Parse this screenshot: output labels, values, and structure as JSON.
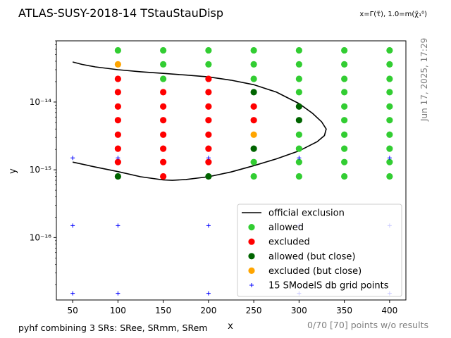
{
  "chart_data": {
    "type": "scatter",
    "title": "ATLAS-SUSY-2018-14 TStauStauDisp",
    "subtitle": "x=Γ(τ̃), 1.0=m(χ̃₁⁰)",
    "xlabel": "x",
    "ylabel": "y",
    "xlim": [
      32,
      418
    ],
    "ylim": [
      1.2e-17,
      8e-14
    ],
    "yscale": "log",
    "grid": false,
    "legend_position": "bottom-right",
    "x_ticks": [
      50,
      100,
      150,
      200,
      250,
      300,
      350,
      400
    ],
    "x_tick_labels": [
      "50",
      "100",
      "150",
      "200",
      "250",
      "300",
      "350",
      "400"
    ],
    "y_ticks": [
      1e-16,
      1e-15,
      1e-14
    ],
    "y_tick_labels": [
      "10⁻¹⁶",
      "10⁻¹⁵",
      "10⁻¹⁴"
    ],
    "colors": {
      "allowed": "#32cd32",
      "excluded": "#ff0000",
      "allowed_close": "#006400",
      "excluded_close": "#ffa500",
      "grid_points": "#0000ff",
      "official_exclusion": "#000000"
    },
    "series": [
      {
        "name": "official exclusion",
        "style": "line",
        "color": "#000000",
        "points": [
          [
            50,
            3.9e-14
          ],
          [
            60,
            3.6e-14
          ],
          [
            75,
            3.3e-14
          ],
          [
            100,
            3e-14
          ],
          [
            125,
            2.8e-14
          ],
          [
            150,
            2.65e-14
          ],
          [
            175,
            2.5e-14
          ],
          [
            200,
            2.35e-14
          ],
          [
            225,
            2.1e-14
          ],
          [
            250,
            1.8e-14
          ],
          [
            275,
            1.4e-14
          ],
          [
            300,
            9.5e-15
          ],
          [
            315,
            6.8e-15
          ],
          [
            325,
            5.1e-15
          ],
          [
            330,
            4e-15
          ],
          [
            328,
            3.2e-15
          ],
          [
            320,
            2.6e-15
          ],
          [
            300,
            1.9e-15
          ],
          [
            275,
            1.45e-15
          ],
          [
            250,
            1.15e-15
          ],
          [
            225,
            9.3e-16
          ],
          [
            200,
            7.9e-16
          ],
          [
            175,
            7.2e-16
          ],
          [
            160,
            7e-16
          ],
          [
            150,
            7.1e-16
          ],
          [
            125,
            7.9e-16
          ],
          [
            100,
            9.4e-16
          ],
          [
            75,
            1.1e-15
          ],
          [
            50,
            1.3e-15
          ]
        ]
      },
      {
        "name": "allowed",
        "style": "marker",
        "color": "#32cd32",
        "points": [
          [
            100,
            5.8e-14
          ],
          [
            150,
            5.8e-14
          ],
          [
            150,
            3.6e-14
          ],
          [
            150,
            2.2e-14
          ],
          [
            200,
            5.8e-14
          ],
          [
            200,
            3.6e-14
          ],
          [
            250,
            5.8e-14
          ],
          [
            250,
            3.6e-14
          ],
          [
            250,
            2.2e-14
          ],
          [
            250,
            1.3e-15
          ],
          [
            250,
            8e-16
          ],
          [
            300,
            5.8e-14
          ],
          [
            300,
            3.6e-14
          ],
          [
            300,
            2.2e-14
          ],
          [
            300,
            1.4e-14
          ],
          [
            300,
            3.3e-15
          ],
          [
            300,
            2.05e-15
          ],
          [
            300,
            1.3e-15
          ],
          [
            300,
            8e-16
          ],
          [
            350,
            5.8e-14
          ],
          [
            350,
            3.6e-14
          ],
          [
            350,
            2.2e-14
          ],
          [
            350,
            1.4e-14
          ],
          [
            350,
            8.6e-15
          ],
          [
            350,
            5.4e-15
          ],
          [
            350,
            3.3e-15
          ],
          [
            350,
            2.05e-15
          ],
          [
            350,
            1.3e-15
          ],
          [
            350,
            8e-16
          ],
          [
            400,
            5.8e-14
          ],
          [
            400,
            3.6e-14
          ],
          [
            400,
            2.2e-14
          ],
          [
            400,
            1.4e-14
          ],
          [
            400,
            8.6e-15
          ],
          [
            400,
            5.4e-15
          ],
          [
            400,
            3.3e-15
          ],
          [
            400,
            2.05e-15
          ],
          [
            400,
            1.3e-15
          ],
          [
            400,
            8e-16
          ]
        ]
      },
      {
        "name": "excluded",
        "style": "marker",
        "color": "#ff0000",
        "points": [
          [
            100,
            2.2e-14
          ],
          [
            100,
            1.4e-14
          ],
          [
            100,
            8.6e-15
          ],
          [
            100,
            5.4e-15
          ],
          [
            100,
            3.3e-15
          ],
          [
            100,
            2.05e-15
          ],
          [
            100,
            1.3e-15
          ],
          [
            150,
            1.4e-14
          ],
          [
            150,
            8.6e-15
          ],
          [
            150,
            5.4e-15
          ],
          [
            150,
            3.3e-15
          ],
          [
            150,
            2.05e-15
          ],
          [
            150,
            1.3e-15
          ],
          [
            150,
            8e-16
          ],
          [
            200,
            2.2e-14
          ],
          [
            200,
            1.4e-14
          ],
          [
            200,
            8.6e-15
          ],
          [
            200,
            5.4e-15
          ],
          [
            200,
            3.3e-15
          ],
          [
            200,
            2.05e-15
          ],
          [
            200,
            1.3e-15
          ],
          [
            250,
            8.6e-15
          ],
          [
            250,
            5.4e-15
          ]
        ]
      },
      {
        "name": "allowed (but close)",
        "style": "marker",
        "color": "#006400",
        "points": [
          [
            100,
            8e-16
          ],
          [
            200,
            8e-16
          ],
          [
            250,
            1.4e-14
          ],
          [
            250,
            2.05e-15
          ],
          [
            300,
            8.6e-15
          ],
          [
            300,
            5.4e-15
          ]
        ]
      },
      {
        "name": "excluded (but close)",
        "style": "marker",
        "color": "#ffa500",
        "points": [
          [
            100,
            3.6e-14
          ],
          [
            250,
            3.3e-15
          ]
        ]
      },
      {
        "name": "15 SModelS db grid points",
        "style": "plus",
        "color": "#0000ff",
        "points": [
          [
            50,
            1.5e-15
          ],
          [
            100,
            1.5e-15
          ],
          [
            200,
            1.5e-15
          ],
          [
            300,
            1.5e-15
          ],
          [
            400,
            1.5e-15
          ],
          [
            50,
            1.5e-16
          ],
          [
            100,
            1.5e-16
          ],
          [
            200,
            1.5e-16
          ],
          [
            300,
            1.5e-16
          ],
          [
            400,
            1.5e-16
          ],
          [
            50,
            1.5e-17
          ],
          [
            100,
            1.5e-17
          ],
          [
            200,
            1.5e-17
          ],
          [
            300,
            1.5e-17
          ],
          [
            400,
            1.5e-17
          ]
        ]
      }
    ],
    "legend": [
      {
        "label": "official exclusion",
        "kind": "line",
        "color": "#000000"
      },
      {
        "label": "allowed",
        "kind": "dot",
        "color": "#32cd32"
      },
      {
        "label": "excluded",
        "kind": "dot",
        "color": "#ff0000"
      },
      {
        "label": "allowed (but close)",
        "kind": "dot",
        "color": "#006400"
      },
      {
        "label": "excluded (but close)",
        "kind": "dot",
        "color": "#ffa500"
      },
      {
        "label": "15 SModelS db grid points",
        "kind": "plus",
        "color": "#0000ff"
      }
    ]
  },
  "footer": {
    "left": "pyhf combining 3 SRs: SRee, SRmm, SRem",
    "right": "0/70 [70] points w/o results"
  },
  "timestamp": "Jun 17, 2025, 17:29"
}
